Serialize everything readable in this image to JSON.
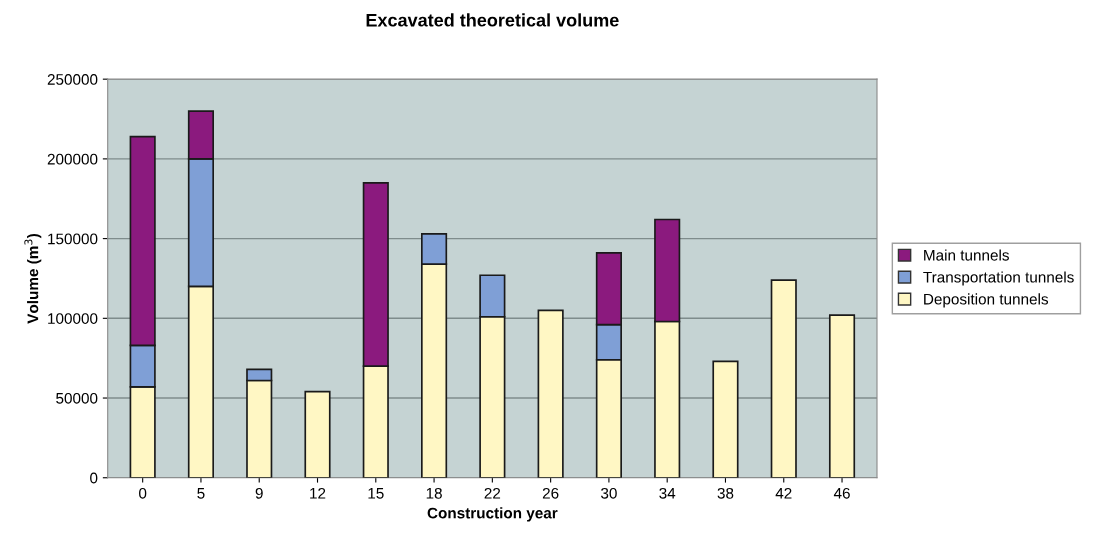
{
  "chart_data": {
    "type": "bar",
    "title": "Excavated theoretical volume",
    "xlabel": "Construction year",
    "ylabel": "Volume (m$^{3}$)",
    "categories": [
      "0",
      "5",
      "9",
      "12",
      "15",
      "18",
      "22",
      "26",
      "30",
      "34",
      "38",
      "42",
      "46"
    ],
    "stacked": true,
    "series": [
      {
        "name": "Deposition tunnels",
        "color": "#fff7c4",
        "values": [
          57000,
          120000,
          61000,
          54000,
          70000,
          134000,
          101000,
          105000,
          74000,
          98000,
          73000,
          124000,
          102000
        ]
      },
      {
        "name": "Transportation tunnels",
        "color": "#7f9fd6",
        "values": [
          26000,
          80000,
          7000,
          null,
          null,
          19000,
          26000,
          null,
          22000,
          null,
          null,
          null,
          null
        ]
      },
      {
        "name": "Main tunnels",
        "color": "#8b1a7e",
        "values": [
          131000,
          30000,
          null,
          null,
          115000,
          null,
          null,
          null,
          45000,
          64000,
          null,
          null,
          null
        ]
      }
    ],
    "ylim": [
      0,
      250000
    ],
    "yticks": [
      0,
      50000,
      100000,
      150000,
      200000,
      250000
    ],
    "grid": "y",
    "legend": "right"
  }
}
